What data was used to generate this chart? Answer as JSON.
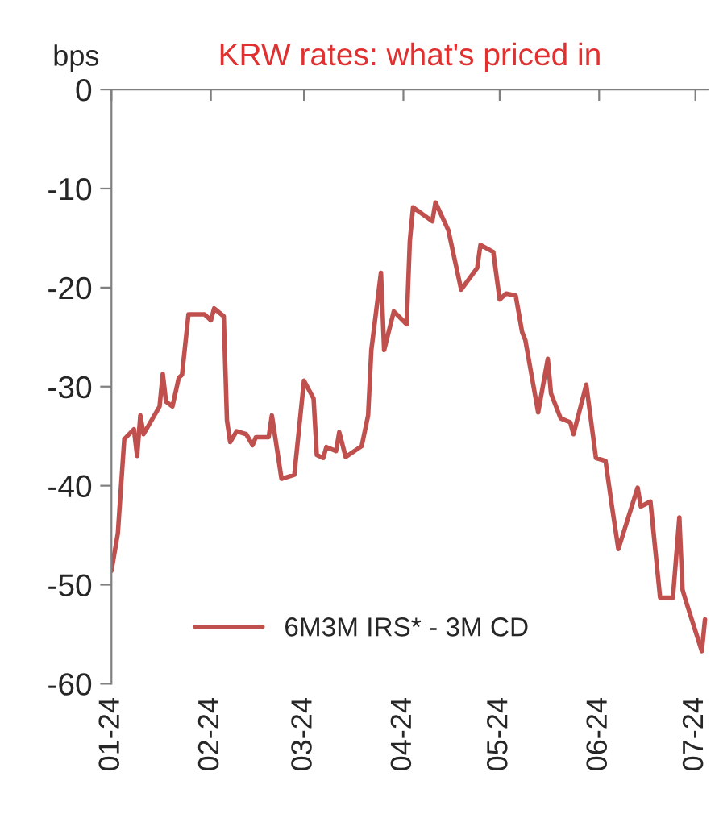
{
  "chart_data": {
    "type": "line",
    "title": "KRW rates: what's priced in",
    "ylabel": "bps",
    "legend": "bottom",
    "grid": false,
    "xlim": [
      "2024-01-01",
      "2024-07-05"
    ],
    "xticks": [
      {
        "value": "2024-01-01",
        "label": "01-24"
      },
      {
        "value": "2024-02-01",
        "label": "02-24"
      },
      {
        "value": "2024-03-01",
        "label": "03-24"
      },
      {
        "value": "2024-04-01",
        "label": "04-24"
      },
      {
        "value": "2024-05-01",
        "label": "05-24"
      },
      {
        "value": "2024-06-01",
        "label": "06-24"
      },
      {
        "value": "2024-07-01",
        "label": "07-24"
      }
    ],
    "ylim": [
      -60,
      0
    ],
    "yticks": [
      0,
      -10,
      -20,
      -30,
      -40,
      -50,
      -60
    ],
    "x": [
      "2024-01-01",
      "2024-01-03",
      "2024-01-04",
      "2024-01-05",
      "2024-01-08",
      "2024-01-09",
      "2024-01-10",
      "2024-01-11",
      "2024-01-16",
      "2024-01-17",
      "2024-01-18",
      "2024-01-20",
      "2024-01-22",
      "2024-01-23",
      "2024-01-25",
      "2024-01-30",
      "2024-02-01",
      "2024-02-02",
      "2024-02-05",
      "2024-02-06",
      "2024-02-07",
      "2024-02-09",
      "2024-02-12",
      "2024-02-14",
      "2024-02-15",
      "2024-02-19",
      "2024-02-20",
      "2024-02-23",
      "2024-02-27",
      "2024-03-01",
      "2024-03-04",
      "2024-03-05",
      "2024-03-07",
      "2024-03-08",
      "2024-03-11",
      "2024-03-12",
      "2024-03-14",
      "2024-03-19",
      "2024-03-21",
      "2024-03-22",
      "2024-03-25",
      "2024-03-26",
      "2024-03-29",
      "2024-04-02",
      "2024-04-03",
      "2024-04-04",
      "2024-04-10",
      "2024-04-11",
      "2024-04-15",
      "2024-04-19",
      "2024-04-24",
      "2024-04-25",
      "2024-04-29",
      "2024-05-01",
      "2024-05-03",
      "2024-05-06",
      "2024-05-08",
      "2024-05-09",
      "2024-05-13",
      "2024-05-16",
      "2024-05-17",
      "2024-05-20",
      "2024-05-23",
      "2024-05-24",
      "2024-05-28",
      "2024-05-31",
      "2024-06-03",
      "2024-06-05",
      "2024-06-07",
      "2024-06-13",
      "2024-06-14",
      "2024-06-17",
      "2024-06-20",
      "2024-06-24",
      "2024-06-26",
      "2024-06-27",
      "2024-06-28",
      "2024-07-03",
      "2024-07-04"
    ],
    "series": [
      {
        "name": "6M3M IRS* - 3M CD",
        "color": "#c0504d",
        "values": [
          -48.6,
          -44.8,
          -40,
          -35.3,
          -34.3,
          -37,
          -32.9,
          -34.8,
          -32,
          -28.7,
          -31.5,
          -32,
          -29.1,
          -28.8,
          -22.7,
          -22.7,
          -23.3,
          -22.1,
          -22.9,
          -33.4,
          -35.6,
          -34.5,
          -34.8,
          -35.9,
          -35.1,
          -35.1,
          -32.9,
          -39.3,
          -38.9,
          -29.4,
          -31.2,
          -36.9,
          -37.2,
          -36.1,
          -36.5,
          -34.6,
          -37.1,
          -36,
          -32.9,
          -26.3,
          -18.5,
          -26.3,
          -22.4,
          -23.7,
          -15.3,
          -11.9,
          -13.3,
          -11.4,
          -14.2,
          -20.2,
          -18,
          -15.7,
          -16.4,
          -21.2,
          -20.6,
          -20.8,
          -24.5,
          -25.3,
          -32.6,
          -27.2,
          -30.7,
          -33.2,
          -33.6,
          -34.8,
          -29.8,
          -37.2,
          -37.5,
          -42.1,
          -46.4,
          -40.2,
          -42.1,
          -41.6,
          -51.3,
          -51.3,
          -43.2,
          -50.5,
          -51.6,
          -56.7,
          -53.5
        ]
      }
    ]
  }
}
